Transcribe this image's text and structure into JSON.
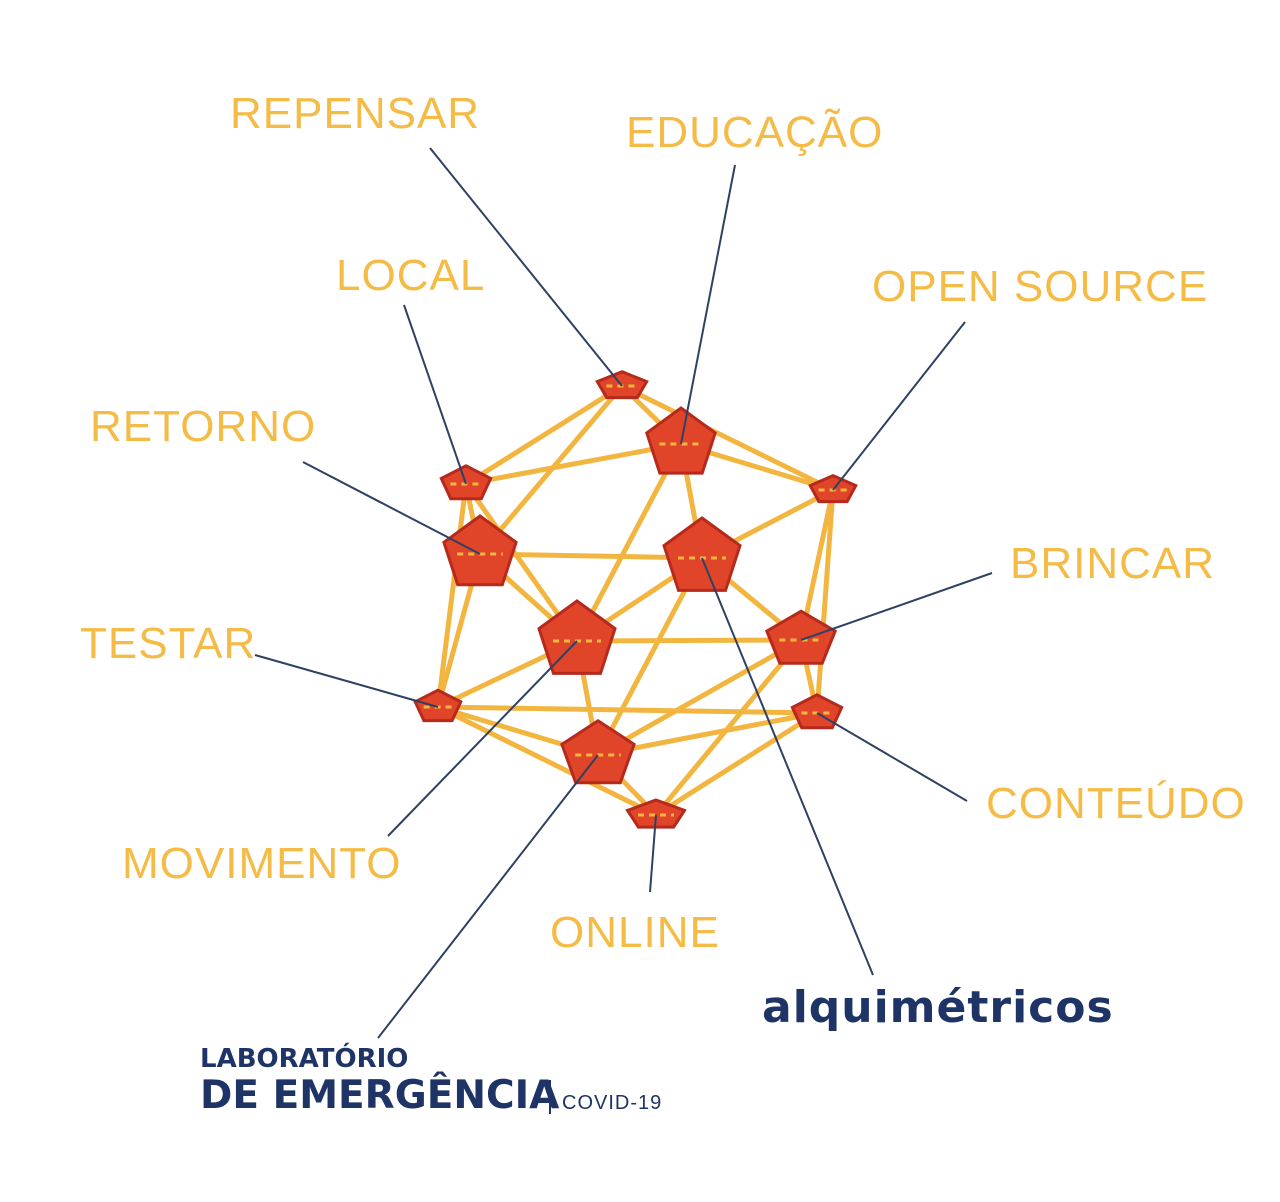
{
  "labels": {
    "repensar": "REPENSAR",
    "educacao": "EDUCAÇÃO",
    "local": "LOCAL",
    "open_source": "OPEN SOURCE",
    "retorno": "RETORNO",
    "brincar": "BRINCAR",
    "testar": "TESTAR",
    "conteudo": "CONTEÚDO",
    "movimento": "MOVIMENTO",
    "online": "ONLINE"
  },
  "brand": {
    "alquimetricos": "alquimétricos",
    "lab_line1": "LABORATÓRIO",
    "lab_line2": "DE EMERGÊNCIA",
    "lab_tag": "COVID-19"
  },
  "colors": {
    "label": "#F4BC46",
    "strut": "#F2B640",
    "connector": "#E0452A",
    "connector_dark": "#B52A1C",
    "leader": "#2F4163",
    "brand": "#1E3466"
  }
}
